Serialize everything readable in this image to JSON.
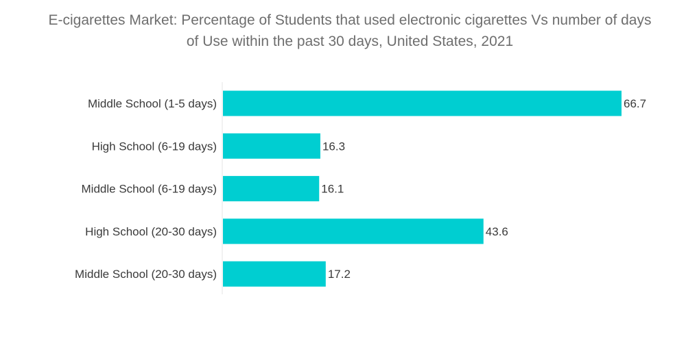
{
  "chart_data": {
    "type": "bar",
    "orientation": "horizontal",
    "title": "E-cigarettes Market: Percentage of Students that used electronic cigarettes Vs number of days of Use within the past 30 days, United States, 2021",
    "categories": [
      "Middle School (1-5 days)",
      "High School (6-19 days)",
      "Middle School (6-19 days)",
      "High School (20-30 days)",
      "Middle School (20-30 days)"
    ],
    "values": [
      66.7,
      16.3,
      16.1,
      43.6,
      17.2
    ],
    "value_labels": [
      "66.7",
      "16.3",
      "16.1",
      "43.6",
      "17.2"
    ],
    "xlim": [
      0,
      66.7
    ],
    "grid": false,
    "legend": "none",
    "bar_color": "#00ced1"
  }
}
